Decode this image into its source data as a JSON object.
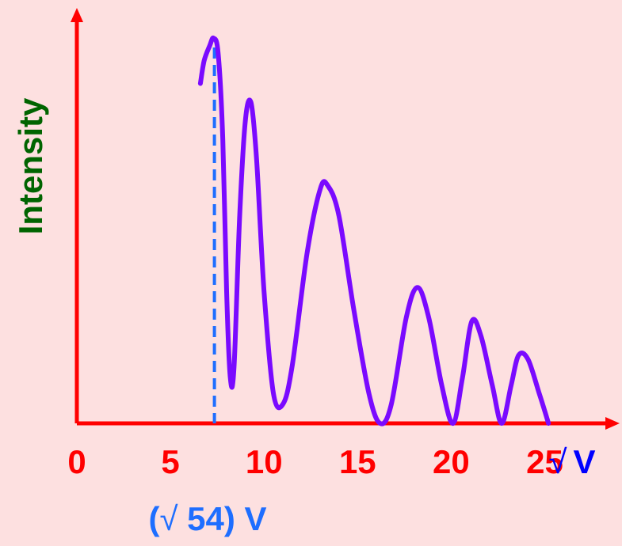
{
  "chart_data": {
    "type": "line",
    "ylabel": "Intensity",
    "xlabel": "√ V",
    "xlabel_parts": {
      "radical": "√",
      "var": "V"
    },
    "xticks": [
      "0",
      "5",
      "10",
      "15",
      "20",
      "25"
    ],
    "xtick_values": [
      0,
      5,
      10,
      15,
      20,
      25
    ],
    "xlim": [
      0,
      29
    ],
    "ylim": [
      0,
      1.1
    ],
    "grid": false,
    "reference_line": {
      "x": 7.35,
      "label": "(√ 54) V",
      "label_parts": {
        "open": "(",
        "radical": "√",
        "value": " 54) V"
      }
    },
    "series": [
      {
        "points": [
          [
            6.6,
            0.9
          ],
          [
            6.8,
            0.96
          ],
          [
            7.1,
            1.0
          ],
          [
            7.3,
            1.02
          ],
          [
            7.55,
            0.98
          ],
          [
            7.8,
            0.75
          ],
          [
            8.0,
            0.35
          ],
          [
            8.2,
            0.12
          ],
          [
            8.4,
            0.15
          ],
          [
            8.7,
            0.55
          ],
          [
            9.0,
            0.8
          ],
          [
            9.3,
            0.85
          ],
          [
            9.6,
            0.7
          ],
          [
            10.0,
            0.35
          ],
          [
            10.5,
            0.08
          ],
          [
            11.0,
            0.05
          ],
          [
            11.5,
            0.15
          ],
          [
            12.3,
            0.45
          ],
          [
            13.0,
            0.62
          ],
          [
            13.4,
            0.63
          ],
          [
            14.0,
            0.55
          ],
          [
            14.8,
            0.3
          ],
          [
            15.6,
            0.08
          ],
          [
            16.2,
            0.0
          ],
          [
            16.8,
            0.05
          ],
          [
            17.6,
            0.28
          ],
          [
            18.2,
            0.36
          ],
          [
            18.8,
            0.28
          ],
          [
            19.5,
            0.1
          ],
          [
            20.1,
            0.0
          ],
          [
            20.6,
            0.12
          ],
          [
            21.1,
            0.27
          ],
          [
            21.6,
            0.23
          ],
          [
            22.2,
            0.1
          ],
          [
            22.7,
            0.0
          ],
          [
            23.2,
            0.1
          ],
          [
            23.6,
            0.18
          ],
          [
            24.1,
            0.17
          ],
          [
            24.7,
            0.08
          ],
          [
            25.2,
            0.0
          ]
        ]
      }
    ],
    "colors": {
      "background": "#fde0e0",
      "axes": "#ff0000",
      "tick_labels": "#ff0000",
      "ylabel": "#006400",
      "xlabel_radical": "#0000ff",
      "xlabel_var": "#0000ff",
      "curve": "#7a0aff",
      "reference_line": "#1e6eff",
      "reference_label": "#1e6eff"
    }
  }
}
